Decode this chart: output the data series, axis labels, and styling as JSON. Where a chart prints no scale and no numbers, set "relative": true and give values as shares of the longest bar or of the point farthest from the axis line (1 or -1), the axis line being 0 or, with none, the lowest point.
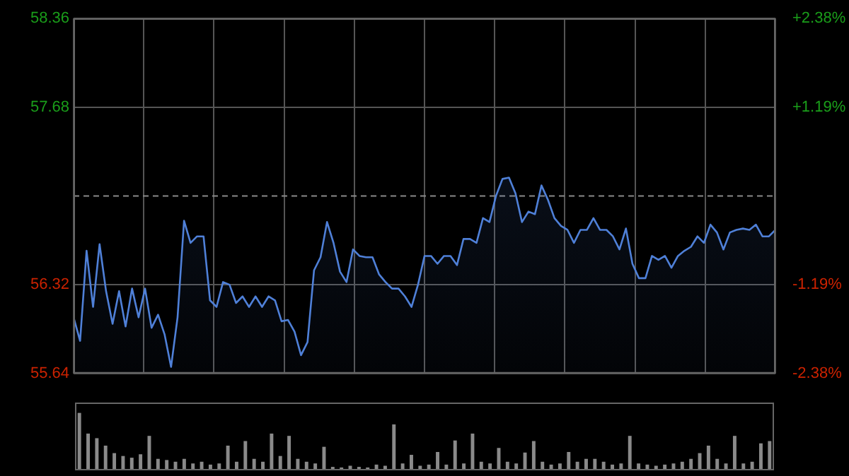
{
  "chart_data": [
    {
      "type": "area",
      "categories": [
        null,
        null,
        null,
        null,
        null,
        null,
        null,
        null,
        null,
        null,
        null,
        null,
        null,
        null,
        null,
        null,
        null,
        null,
        null,
        null,
        null,
        null,
        null,
        null,
        null,
        null,
        null,
        null,
        null,
        null,
        null,
        null,
        null,
        null,
        null,
        null,
        null,
        null,
        null,
        null,
        null,
        null,
        null,
        null,
        null,
        null,
        null,
        null,
        null,
        null,
        null,
        null,
        null,
        null,
        null,
        null,
        null,
        null,
        null,
        null,
        null,
        null,
        null,
        null,
        null,
        null,
        null,
        null,
        null,
        null,
        null,
        null,
        null,
        null,
        null,
        null,
        null,
        null,
        null,
        null,
        null,
        null,
        null,
        null,
        null,
        null,
        null,
        null,
        null,
        null,
        null,
        null,
        null,
        null,
        null,
        null,
        null,
        null,
        null,
        null,
        null,
        null,
        null,
        null,
        null,
        null,
        null,
        null,
        null
      ],
      "series": [
        {
          "color": "#4f80d8",
          "values": [
            56.07,
            55.89,
            56.58,
            56.15,
            56.63,
            56.27,
            56.02,
            56.27,
            56.0,
            56.29,
            56.07,
            56.29,
            55.99,
            56.09,
            55.94,
            55.69,
            56.07,
            56.81,
            56.64,
            56.69,
            56.69,
            56.2,
            56.15,
            56.34,
            56.32,
            56.18,
            56.23,
            56.15,
            56.23,
            56.15,
            56.23,
            56.2,
            56.04,
            56.05,
            55.96,
            55.78,
            55.88,
            56.43,
            56.53,
            56.8,
            56.64,
            56.42,
            56.34,
            56.59,
            56.54,
            56.53,
            56.53,
            56.4,
            56.34,
            56.29,
            56.29,
            56.23,
            56.15,
            56.32,
            56.54,
            56.54,
            56.48,
            56.54,
            56.54,
            56.47,
            56.67,
            56.67,
            56.64,
            56.83,
            56.8,
            57.0,
            57.13,
            57.14,
            57.02,
            56.8,
            56.88,
            56.86,
            57.08,
            56.97,
            56.83,
            56.77,
            56.74,
            56.64,
            56.74,
            56.74,
            56.83,
            56.74,
            56.74,
            56.69,
            56.59,
            56.75,
            56.48,
            56.37,
            56.37,
            56.54,
            56.51,
            56.54,
            56.45,
            56.54,
            56.58,
            56.61,
            56.69,
            56.64,
            56.78,
            56.72,
            56.59,
            56.72,
            56.74,
            56.75,
            56.74,
            56.78,
            56.69,
            56.69,
            56.74
          ]
        }
      ],
      "ylim": [
        55.64,
        58.36
      ],
      "yticks": [
        55.64,
        56.32,
        57.68,
        58.36
      ],
      "y2lim": [
        -2.38,
        2.38
      ],
      "y2ticks": [
        {
          "value": -2.38,
          "label": "-2.38%"
        },
        {
          "value": -1.19,
          "label": "-1.19%"
        },
        {
          "value": 1.19,
          "label": "+1.19%"
        },
        {
          "value": 2.38,
          "label": "+2.38%"
        }
      ],
      "ref_lines": [
        {
          "axis": "y",
          "value": 57.0,
          "label": null,
          "line_style": "dashed"
        }
      ],
      "grid": true,
      "legend": false,
      "tick_labels": "y",
      "marker": "none"
    },
    {
      "type": "bar",
      "relative": true,
      "color": "#8a8a8a",
      "categories": [
        null,
        null,
        null,
        null,
        null,
        null,
        null,
        null,
        null,
        null,
        null,
        null,
        null,
        null,
        null,
        null,
        null,
        null,
        null,
        null,
        null,
        null,
        null,
        null,
        null,
        null,
        null,
        null,
        null,
        null,
        null,
        null,
        null,
        null,
        null,
        null,
        null,
        null,
        null,
        null,
        null,
        null,
        null,
        null,
        null,
        null,
        null,
        null,
        null,
        null,
        null,
        null,
        null,
        null,
        null,
        null,
        null,
        null,
        null,
        null,
        null,
        null,
        null,
        null,
        null,
        null,
        null,
        null,
        null,
        null,
        null,
        null,
        null,
        null,
        null,
        null,
        null,
        null,
        null,
        null
      ],
      "values": [
        1.0,
        0.64,
        0.56,
        0.43,
        0.3,
        0.25,
        0.22,
        0.28,
        0.6,
        0.2,
        0.18,
        0.15,
        0.2,
        0.12,
        0.15,
        0.1,
        0.12,
        0.43,
        0.15,
        0.51,
        0.2,
        0.15,
        0.64,
        0.25,
        0.6,
        0.2,
        0.15,
        0.12,
        0.41,
        0.06,
        0.05,
        0.08,
        0.06,
        0.05,
        0.1,
        0.08,
        0.8,
        0.12,
        0.27,
        0.08,
        0.1,
        0.32,
        0.1,
        0.52,
        0.12,
        0.64,
        0.15,
        0.12,
        0.39,
        0.15,
        0.12,
        0.31,
        0.51,
        0.15,
        0.1,
        0.12,
        0.32,
        0.15,
        0.2,
        0.2,
        0.15,
        0.1,
        0.12,
        0.6,
        0.12,
        0.1,
        0.08,
        0.1,
        0.12,
        0.15,
        0.2,
        0.3,
        0.43,
        0.2,
        0.12,
        0.6,
        0.12,
        0.15,
        0.47,
        0.51
      ],
      "grid": false,
      "legend": false,
      "tick_labels": false
    }
  ]
}
